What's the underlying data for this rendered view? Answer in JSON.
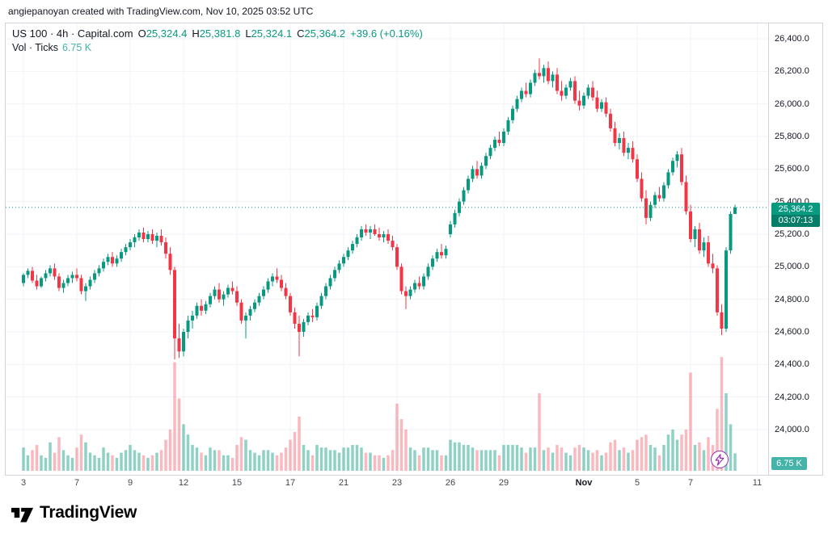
{
  "attribution": "angiepanoyan created with TradingView.com, Nov 10, 2025 03:52 UTC",
  "legend": {
    "symbol_line": "US 100 · 4h · Capital.com",
    "ohlc": {
      "o_label": "O",
      "o": "25,324.4",
      "h_label": "H",
      "h": "25,381.8",
      "l_label": "L",
      "l": "25,324.1",
      "c_label": "C",
      "c": "25,364.2"
    },
    "change": "+39.6 (+0.16%)",
    "vol_row": {
      "label": "Vol · Ticks",
      "value": "6.75 K"
    }
  },
  "last_price_badge": {
    "price": "25,364.2",
    "countdown": "03:07:13"
  },
  "volume_badge": "6.75 K",
  "footer": {
    "brand": "TradingView"
  },
  "colors": {
    "up": "#089981",
    "down": "#f23645",
    "vol_up": "rgba(8,153,129,0.45)",
    "vol_down": "rgba(242,54,69,0.35)",
    "grid": "#f0f3fa",
    "axis_text": "#131722",
    "badge": "#089981",
    "vol_badge": "#45b3a8",
    "purple": "#9c27b0"
  },
  "price_axis": {
    "gridlines": [
      {
        "p": 26400,
        "label": "26,400.0"
      },
      {
        "p": 26200,
        "label": "26,200.0"
      },
      {
        "p": 26000,
        "label": "26,000.0"
      },
      {
        "p": 25800,
        "label": "25,800.0"
      },
      {
        "p": 25600,
        "label": "25,600.0"
      },
      {
        "p": 25400,
        "label": "25,400.0"
      },
      {
        "p": 25200,
        "label": "25,200.0"
      },
      {
        "p": 25000,
        "label": "25,000.0"
      },
      {
        "p": 24800,
        "label": "24,800.0"
      },
      {
        "p": 24600,
        "label": "24,600.0"
      },
      {
        "p": 24400,
        "label": "24,400.0"
      },
      {
        "p": 24200,
        "label": "24,200.0"
      },
      {
        "p": 24000,
        "label": "24,000.0"
      }
    ]
  },
  "chart_data": {
    "type": "candlestick+volume",
    "symbol": "US 100",
    "timeframe": "4h",
    "source": "Capital.com",
    "title": "US 100 · 4h · Capital.com",
    "y_range": [
      24000,
      26400
    ],
    "last": {
      "o": 25324.4,
      "h": 25381.8,
      "l": 25324.1,
      "c": 25364.2,
      "change_abs": 39.6,
      "change_pct": 0.16,
      "volume_k": 6.75,
      "countdown": "03:07:13"
    },
    "x_ticks": [
      {
        "label": "3",
        "index": 0
      },
      {
        "label": "7",
        "index": 12
      },
      {
        "label": "9",
        "index": 24
      },
      {
        "label": "12",
        "index": 36
      },
      {
        "label": "15",
        "index": 48
      },
      {
        "label": "17",
        "index": 60
      },
      {
        "label": "21",
        "index": 72
      },
      {
        "label": "23",
        "index": 84
      },
      {
        "label": "26",
        "index": 96
      },
      {
        "label": "29",
        "index": 108
      },
      {
        "label": "Nov",
        "index": 126,
        "major": true
      },
      {
        "label": "5",
        "index": 138
      },
      {
        "label": "7",
        "index": 150
      },
      {
        "label": "11",
        "index": 165
      }
    ],
    "candles_note": "arrays are [open, high, low, close, volume_in_K]; values estimated from chart",
    "candles": [
      [
        24900,
        24960,
        24880,
        24950,
        9
      ],
      [
        24950,
        24990,
        24930,
        24975,
        6
      ],
      [
        24975,
        25000,
        24900,
        24915,
        8
      ],
      [
        24915,
        24950,
        24860,
        24880,
        10
      ],
      [
        24880,
        24940,
        24870,
        24930,
        6
      ],
      [
        24930,
        24980,
        24910,
        24960,
        5
      ],
      [
        24960,
        25010,
        24940,
        24990,
        11
      ],
      [
        24990,
        25020,
        24920,
        24940,
        7
      ],
      [
        24940,
        24960,
        24850,
        24870,
        13
      ],
      [
        24870,
        24920,
        24840,
        24900,
        8
      ],
      [
        24900,
        24950,
        24880,
        24930,
        6
      ],
      [
        24930,
        24970,
        24900,
        24950,
        5
      ],
      [
        24950,
        24990,
        24910,
        24930,
        9
      ],
      [
        24930,
        24950,
        24830,
        24850,
        14
      ],
      [
        24850,
        24900,
        24790,
        24880,
        11
      ],
      [
        24880,
        24940,
        24860,
        24920,
        7
      ],
      [
        24920,
        24980,
        24900,
        24960,
        6
      ],
      [
        24960,
        25010,
        24940,
        24990,
        5
      ],
      [
        24990,
        25050,
        24970,
        25030,
        9
      ],
      [
        25030,
        25080,
        25010,
        25060,
        7
      ],
      [
        25060,
        25090,
        25000,
        25020,
        6
      ],
      [
        25020,
        25070,
        25000,
        25050,
        5
      ],
      [
        25050,
        25110,
        25030,
        25090,
        7
      ],
      [
        25090,
        25140,
        25070,
        25120,
        8
      ],
      [
        25120,
        25170,
        25100,
        25150,
        10
      ],
      [
        25150,
        25200,
        25120,
        25180,
        8
      ],
      [
        25180,
        25230,
        25160,
        25210,
        7
      ],
      [
        25210,
        25240,
        25150,
        25170,
        6
      ],
      [
        25170,
        25220,
        25150,
        25200,
        5
      ],
      [
        25200,
        25230,
        25140,
        25160,
        6
      ],
      [
        25160,
        25210,
        25120,
        25190,
        7
      ],
      [
        25190,
        25230,
        25130,
        25150,
        8
      ],
      [
        25150,
        25180,
        25050,
        25080,
        12
      ],
      [
        25080,
        25120,
        24950,
        24980,
        16
      ],
      [
        24980,
        25000,
        24430,
        24560,
        42
      ],
      [
        24560,
        24650,
        24440,
        24480,
        28
      ],
      [
        24480,
        24620,
        24450,
        24600,
        18
      ],
      [
        24600,
        24700,
        24560,
        24670,
        14
      ],
      [
        24670,
        24730,
        24620,
        24700,
        10
      ],
      [
        24700,
        24780,
        24680,
        24760,
        9
      ],
      [
        24760,
        24800,
        24700,
        24730,
        7
      ],
      [
        24730,
        24790,
        24710,
        24770,
        6
      ],
      [
        24770,
        24840,
        24750,
        24820,
        9
      ],
      [
        24820,
        24880,
        24800,
        24860,
        8
      ],
      [
        24860,
        24900,
        24780,
        24800,
        8
      ],
      [
        24800,
        24850,
        24760,
        24830,
        6
      ],
      [
        24830,
        24890,
        24810,
        24870,
        6
      ],
      [
        24870,
        24910,
        24830,
        24850,
        5
      ],
      [
        24850,
        24880,
        24760,
        24780,
        10
      ],
      [
        24780,
        24800,
        24650,
        24670,
        13
      ],
      [
        24670,
        24720,
        24560,
        24700,
        12
      ],
      [
        24700,
        24760,
        24670,
        24740,
        8
      ],
      [
        24740,
        24800,
        24720,
        24780,
        7
      ],
      [
        24780,
        24840,
        24760,
        24820,
        6
      ],
      [
        24820,
        24880,
        24800,
        24860,
        8
      ],
      [
        24860,
        24930,
        24840,
        24910,
        8
      ],
      [
        24910,
        24960,
        24880,
        24940,
        7
      ],
      [
        24940,
        24990,
        24900,
        24920,
        6
      ],
      [
        24920,
        24950,
        24850,
        24870,
        7
      ],
      [
        24870,
        24900,
        24800,
        24820,
        9
      ],
      [
        24820,
        24840,
        24700,
        24720,
        12
      ],
      [
        24720,
        24750,
        24620,
        24650,
        15
      ],
      [
        24650,
        24700,
        24450,
        24600,
        21
      ],
      [
        24600,
        24680,
        24570,
        24660,
        10
      ],
      [
        24660,
        24720,
        24640,
        24700,
        8
      ],
      [
        24700,
        24740,
        24660,
        24690,
        6
      ],
      [
        24690,
        24780,
        24670,
        24760,
        10
      ],
      [
        24760,
        24840,
        24740,
        24820,
        9
      ],
      [
        24820,
        24900,
        24800,
        24880,
        9
      ],
      [
        24880,
        24950,
        24860,
        24930,
        8
      ],
      [
        24930,
        25000,
        24910,
        24980,
        8
      ],
      [
        24980,
        25040,
        24960,
        25020,
        7
      ],
      [
        25020,
        25080,
        25000,
        25060,
        9
      ],
      [
        25060,
        25120,
        25040,
        25100,
        9
      ],
      [
        25100,
        25160,
        25080,
        25140,
        10
      ],
      [
        25140,
        25200,
        25120,
        25180,
        10
      ],
      [
        25180,
        25250,
        25160,
        25230,
        9
      ],
      [
        25230,
        25260,
        25190,
        25210,
        7
      ],
      [
        25210,
        25250,
        25170,
        25230,
        7
      ],
      [
        25230,
        25260,
        25190,
        25200,
        6
      ],
      [
        25200,
        25240,
        25160,
        25180,
        6
      ],
      [
        25180,
        25220,
        25150,
        25200,
        5
      ],
      [
        25200,
        25230,
        25140,
        25160,
        6
      ],
      [
        25160,
        25190,
        25100,
        25120,
        8
      ],
      [
        25120,
        25140,
        24980,
        25000,
        26
      ],
      [
        25000,
        25020,
        24830,
        24850,
        20
      ],
      [
        24850,
        24880,
        24740,
        24820,
        16
      ],
      [
        24820,
        24880,
        24800,
        24860,
        9
      ],
      [
        24860,
        24920,
        24840,
        24900,
        8
      ],
      [
        24900,
        24940,
        24860,
        24880,
        6
      ],
      [
        24880,
        24960,
        24860,
        24940,
        9
      ],
      [
        24940,
        25020,
        24920,
        25000,
        9
      ],
      [
        25000,
        25070,
        24980,
        25050,
        8
      ],
      [
        25050,
        25110,
        25030,
        25090,
        8
      ],
      [
        25090,
        25140,
        25050,
        25070,
        6
      ],
      [
        25070,
        25130,
        25050,
        25110,
        6
      ],
      [
        25200,
        25280,
        25180,
        25260,
        12
      ],
      [
        25260,
        25350,
        25240,
        25330,
        11
      ],
      [
        25330,
        25420,
        25310,
        25400,
        11
      ],
      [
        25400,
        25490,
        25380,
        25470,
        10
      ],
      [
        25470,
        25560,
        25450,
        25540,
        10
      ],
      [
        25540,
        25620,
        25520,
        25600,
        9
      ],
      [
        25600,
        25650,
        25540,
        25560,
        8
      ],
      [
        25560,
        25640,
        25540,
        25620,
        8
      ],
      [
        25620,
        25700,
        25600,
        25680,
        8
      ],
      [
        25680,
        25750,
        25660,
        25730,
        8
      ],
      [
        25730,
        25800,
        25710,
        25780,
        8
      ],
      [
        25780,
        25830,
        25740,
        25760,
        6
      ],
      [
        25760,
        25850,
        25740,
        25830,
        10
      ],
      [
        25830,
        25920,
        25810,
        25900,
        10
      ],
      [
        25900,
        25990,
        25880,
        25970,
        10
      ],
      [
        25970,
        26050,
        25950,
        26030,
        10
      ],
      [
        26030,
        26100,
        26010,
        26080,
        9
      ],
      [
        26080,
        26130,
        26040,
        26060,
        7
      ],
      [
        26060,
        26150,
        26040,
        26130,
        9
      ],
      [
        26130,
        26210,
        26110,
        26190,
        9
      ],
      [
        26190,
        26280,
        26150,
        26170,
        30
      ],
      [
        26170,
        26240,
        26130,
        26220,
        8
      ],
      [
        26220,
        26260,
        26120,
        26140,
        9
      ],
      [
        26140,
        26200,
        26100,
        26180,
        7
      ],
      [
        26180,
        26220,
        26060,
        26080,
        10
      ],
      [
        26080,
        26140,
        26020,
        26050,
        9
      ],
      [
        26050,
        26120,
        26030,
        26100,
        7
      ],
      [
        26100,
        26160,
        26080,
        26140,
        6
      ],
      [
        26140,
        26170,
        26000,
        26020,
        9
      ],
      [
        26020,
        26080,
        25960,
        25990,
        10
      ],
      [
        25990,
        26070,
        25970,
        26050,
        9
      ],
      [
        26050,
        26120,
        26030,
        26100,
        8
      ],
      [
        26100,
        26140,
        26020,
        26040,
        7
      ],
      [
        26040,
        26080,
        25950,
        25970,
        8
      ],
      [
        25970,
        26030,
        25950,
        26010,
        6
      ],
      [
        26010,
        26040,
        25920,
        25940,
        7
      ],
      [
        25940,
        25970,
        25830,
        25850,
        11
      ],
      [
        25850,
        25890,
        25740,
        25760,
        12
      ],
      [
        25760,
        25820,
        25720,
        25790,
        8
      ],
      [
        25790,
        25830,
        25680,
        25700,
        9
      ],
      [
        25700,
        25760,
        25660,
        25730,
        7
      ],
      [
        25730,
        25770,
        25640,
        25660,
        8
      ],
      [
        25660,
        25690,
        25520,
        25540,
        12
      ],
      [
        25540,
        25580,
        25400,
        25420,
        13
      ],
      [
        25420,
        25470,
        25260,
        25300,
        14
      ],
      [
        25300,
        25400,
        25280,
        25380,
        10
      ],
      [
        25380,
        25460,
        25360,
        25440,
        9
      ],
      [
        25440,
        25490,
        25400,
        25420,
        6
      ],
      [
        25420,
        25520,
        25400,
        25500,
        10
      ],
      [
        25500,
        25600,
        25480,
        25580,
        14
      ],
      [
        25580,
        25670,
        25560,
        25650,
        16
      ],
      [
        25650,
        25710,
        25610,
        25690,
        12
      ],
      [
        25690,
        25730,
        25500,
        25520,
        14
      ],
      [
        25520,
        25560,
        25320,
        25340,
        16
      ],
      [
        25340,
        25380,
        25150,
        25170,
        38
      ],
      [
        25170,
        25250,
        25120,
        25230,
        10
      ],
      [
        25230,
        25270,
        25080,
        25100,
        11
      ],
      [
        25100,
        25180,
        25060,
        25150,
        8
      ],
      [
        25150,
        25190,
        25000,
        25020,
        13
      ],
      [
        25020,
        25080,
        24960,
        24990,
        10
      ],
      [
        24990,
        25010,
        24700,
        24720,
        24
      ],
      [
        24720,
        24770,
        24580,
        24620,
        44
      ],
      [
        24620,
        25120,
        24600,
        25100,
        30
      ],
      [
        25100,
        25340,
        25080,
        25324,
        18
      ],
      [
        25324.4,
        25381.8,
        25324.1,
        25364.2,
        6.75
      ]
    ]
  }
}
